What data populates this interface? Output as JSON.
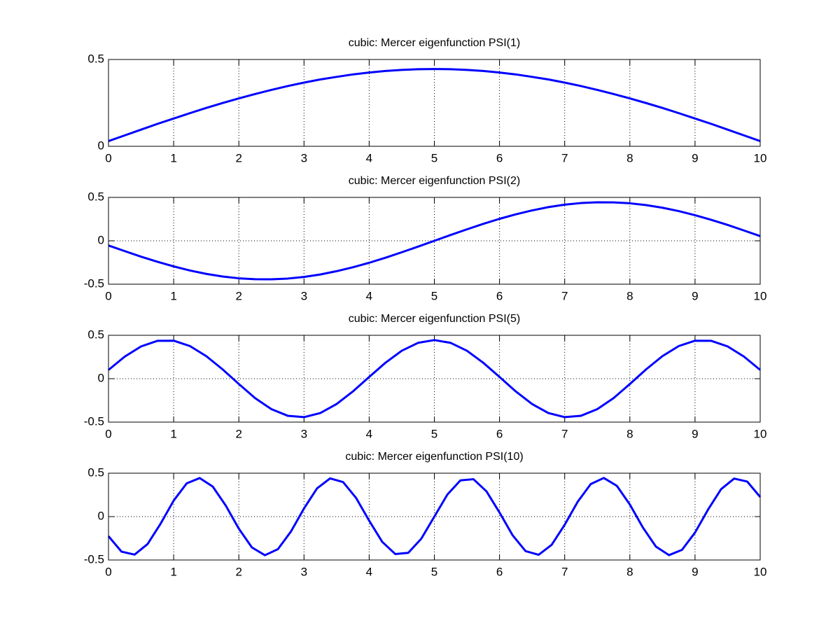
{
  "chart_data": [
    {
      "type": "line",
      "title": "cubic: Mercer eigenfunction PSI(1)",
      "color": "#0000ff",
      "grid": true,
      "xlim": [
        0,
        10
      ],
      "xticks": [
        0,
        1,
        2,
        3,
        4,
        5,
        6,
        7,
        8,
        9,
        10
      ],
      "ylim": [
        0,
        0.5
      ],
      "yticks": [
        0,
        0.5
      ],
      "x": [
        0,
        0.25,
        0.5,
        0.75,
        1,
        1.25,
        1.5,
        1.75,
        2,
        2.25,
        2.5,
        2.75,
        3,
        3.25,
        3.5,
        3.75,
        4,
        4.25,
        4.5,
        4.75,
        5,
        5.25,
        5.5,
        5.75,
        6,
        6.25,
        6.5,
        6.75,
        7,
        7.25,
        7.5,
        7.75,
        8,
        8.25,
        8.5,
        8.75,
        9,
        9.25,
        9.5,
        9.75,
        10
      ],
      "values": [
        0.03,
        0.063,
        0.096,
        0.129,
        0.16,
        0.191,
        0.221,
        0.249,
        0.276,
        0.301,
        0.325,
        0.347,
        0.367,
        0.385,
        0.4,
        0.414,
        0.425,
        0.434,
        0.44,
        0.444,
        0.445,
        0.444,
        0.44,
        0.434,
        0.425,
        0.414,
        0.4,
        0.385,
        0.367,
        0.347,
        0.325,
        0.301,
        0.276,
        0.249,
        0.221,
        0.191,
        0.16,
        0.129,
        0.096,
        0.063,
        0.03
      ]
    },
    {
      "type": "line",
      "title": "cubic: Mercer eigenfunction PSI(2)",
      "color": "#0000ff",
      "grid": true,
      "xlim": [
        0,
        10
      ],
      "xticks": [
        0,
        1,
        2,
        3,
        4,
        5,
        6,
        7,
        8,
        9,
        10
      ],
      "ylim": [
        -0.5,
        0.5
      ],
      "yticks": [
        -0.5,
        0,
        0.5
      ],
      "x": [
        0,
        0.25,
        0.5,
        0.75,
        1,
        1.25,
        1.5,
        1.75,
        2,
        2.25,
        2.5,
        2.75,
        3,
        3.25,
        3.5,
        3.75,
        4,
        4.25,
        4.5,
        4.75,
        5,
        5.25,
        5.5,
        5.75,
        6,
        6.25,
        6.5,
        6.75,
        7,
        7.25,
        7.5,
        7.75,
        8,
        8.25,
        8.5,
        8.75,
        9,
        9.25,
        9.5,
        9.75,
        10
      ],
      "values": [
        -0.054,
        -0.119,
        -0.183,
        -0.241,
        -0.295,
        -0.342,
        -0.381,
        -0.411,
        -0.432,
        -0.443,
        -0.444,
        -0.435,
        -0.416,
        -0.388,
        -0.35,
        -0.305,
        -0.253,
        -0.195,
        -0.132,
        -0.067,
        0,
        0.067,
        0.132,
        0.195,
        0.253,
        0.305,
        0.35,
        0.388,
        0.416,
        0.435,
        0.444,
        0.443,
        0.432,
        0.411,
        0.381,
        0.342,
        0.295,
        0.241,
        0.183,
        0.119,
        0.054
      ]
    },
    {
      "type": "line",
      "title": "cubic: Mercer eigenfunction PSI(5)",
      "color": "#0000ff",
      "grid": true,
      "xlim": [
        0,
        10
      ],
      "xticks": [
        0,
        1,
        2,
        3,
        4,
        5,
        6,
        7,
        8,
        9,
        10
      ],
      "ylim": [
        -0.5,
        0.5
      ],
      "yticks": [
        -0.5,
        0,
        0.5
      ],
      "x": [
        0,
        0.25,
        0.5,
        0.75,
        1,
        1.25,
        1.5,
        1.75,
        2,
        2.25,
        2.5,
        2.75,
        3,
        3.25,
        3.5,
        3.75,
        4,
        4.25,
        4.5,
        4.75,
        5,
        5.25,
        5.5,
        5.75,
        6,
        6.25,
        6.5,
        6.75,
        7,
        7.25,
        7.5,
        7.75,
        8,
        8.25,
        8.5,
        8.75,
        9,
        9.25,
        9.5,
        9.75,
        10
      ],
      "values": [
        0.101,
        0.255,
        0.372,
        0.436,
        0.438,
        0.376,
        0.26,
        0.108,
        -0.061,
        -0.224,
        -0.351,
        -0.427,
        -0.443,
        -0.396,
        -0.292,
        -0.147,
        0.02,
        0.184,
        0.322,
        0.413,
        0.445,
        0.413,
        0.322,
        0.184,
        0.02,
        -0.147,
        -0.292,
        -0.396,
        -0.443,
        -0.427,
        -0.351,
        -0.224,
        -0.061,
        0.108,
        0.26,
        0.376,
        0.438,
        0.436,
        0.372,
        0.255,
        0.101
      ]
    },
    {
      "type": "line",
      "title": "cubic: Mercer eigenfunction PSI(10)",
      "color": "#0000ff",
      "grid": true,
      "xlim": [
        0,
        10
      ],
      "xticks": [
        0,
        1,
        2,
        3,
        4,
        5,
        6,
        7,
        8,
        9,
        10
      ],
      "ylim": [
        -0.5,
        0.5
      ],
      "yticks": [
        -0.5,
        0,
        0.5
      ],
      "x": [
        0,
        0.2,
        0.4,
        0.6,
        0.8,
        1,
        1.2,
        1.4,
        1.6,
        1.8,
        2,
        2.2,
        2.4,
        2.6,
        2.8,
        3,
        3.2,
        3.4,
        3.6,
        3.8,
        4,
        4.2,
        4.4,
        4.6,
        4.8,
        5,
        5.2,
        5.4,
        5.6,
        5.8,
        6,
        6.2,
        6.4,
        6.6,
        6.8,
        7,
        7.2,
        7.4,
        7.6,
        7.8,
        8,
        8.2,
        8.4,
        8.6,
        8.8,
        9,
        9.2,
        9.4,
        9.6,
        9.8,
        10
      ],
      "values": [
        -0.226,
        -0.404,
        -0.438,
        -0.316,
        -0.081,
        0.184,
        0.383,
        0.444,
        0.346,
        0.126,
        -0.139,
        -0.355,
        -0.445,
        -0.375,
        -0.171,
        0.094,
        0.325,
        0.44,
        0.398,
        0.214,
        -0.047,
        -0.291,
        -0.431,
        -0.417,
        -0.254,
        0,
        0.254,
        0.417,
        0.431,
        0.291,
        0.047,
        -0.214,
        -0.398,
        -0.44,
        -0.325,
        -0.094,
        0.171,
        0.375,
        0.445,
        0.355,
        0.139,
        -0.126,
        -0.346,
        -0.444,
        -0.383,
        -0.184,
        0.081,
        0.316,
        0.438,
        0.404,
        0.226
      ]
    }
  ]
}
